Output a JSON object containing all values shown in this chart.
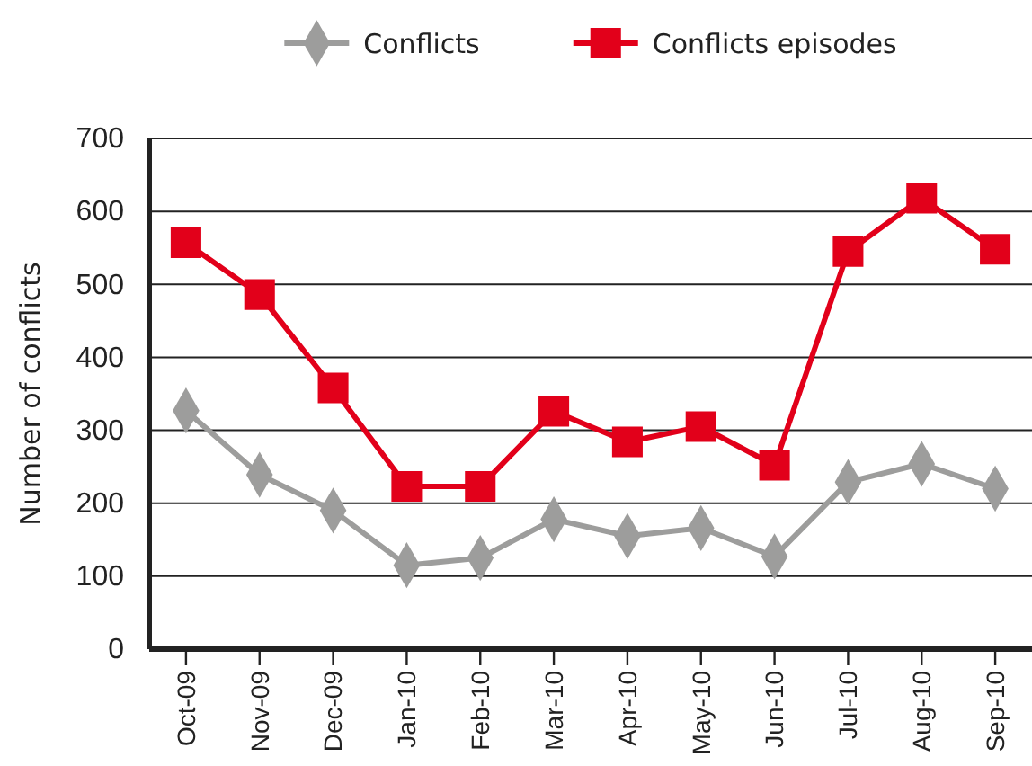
{
  "chart_data": {
    "type": "line",
    "ylabel": "Number of conflicts",
    "categories": [
      "Oct-09",
      "Nov-09",
      "Dec-09",
      "Jan-10",
      "Feb-10",
      "Mar-10",
      "Apr-10",
      "May-10",
      "Jun-10",
      "Jul-10",
      "Aug-10",
      "Sep-10"
    ],
    "series": [
      {
        "name": "Conflicts",
        "color": "#9d9d9c",
        "marker": "diamond",
        "values": [
          327,
          239,
          190,
          115,
          125,
          178,
          155,
          166,
          127,
          229,
          254,
          220
        ]
      },
      {
        "name": "Conflicts episodes",
        "color": "#e2001a",
        "marker": "square",
        "values": [
          557,
          486,
          358,
          223,
          223,
          326,
          284,
          305,
          252,
          545,
          618,
          548
        ]
      }
    ],
    "ylim": [
      0,
      700
    ],
    "yticks": [
      0,
      100,
      200,
      300,
      400,
      500,
      600,
      700
    ],
    "grid": "y",
    "legend": "top",
    "line_style": "solid"
  }
}
